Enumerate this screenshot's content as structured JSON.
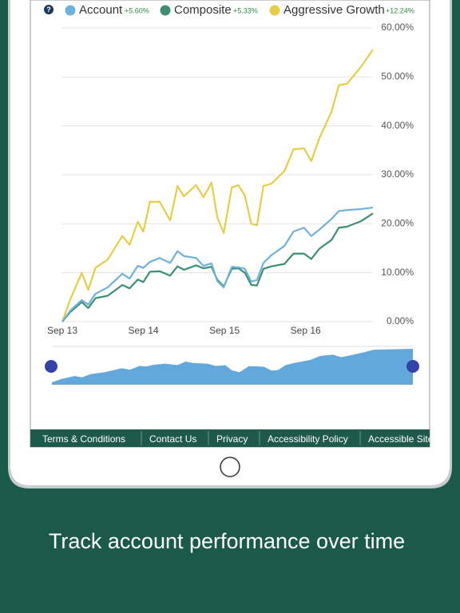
{
  "chart_data": {
    "type": "line",
    "x": [
      0,
      0.1,
      0.24,
      0.32,
      0.41,
      0.56,
      0.74,
      0.83,
      0.93,
      1.0,
      1.08,
      1.2,
      1.33,
      1.42,
      1.5,
      1.65,
      1.74,
      1.84,
      1.91,
      1.99,
      2.09,
      2.17,
      2.25,
      2.33,
      2.4,
      2.48,
      2.58,
      2.74,
      2.85,
      2.98,
      3.07,
      3.17,
      3.32,
      3.41,
      3.51,
      3.68,
      3.83
    ],
    "xlim": [
      0,
      3.83
    ],
    "xticks": [
      {
        "value": 0,
        "label": "Sep 13"
      },
      {
        "value": 1,
        "label": "Sep 14"
      },
      {
        "value": 2,
        "label": "Sep 15"
      },
      {
        "value": 3,
        "label": "Sep 16"
      }
    ],
    "ylim": [
      0,
      60
    ],
    "yticks": [
      {
        "value": 0,
        "label": "0.00%"
      },
      {
        "value": 10,
        "label": "10.00%"
      },
      {
        "value": 20,
        "label": "20.00%"
      },
      {
        "value": 30,
        "label": "30.00%"
      },
      {
        "value": 40,
        "label": "40.00%"
      },
      {
        "value": 50,
        "label": "50.00%"
      },
      {
        "value": 60,
        "label": "60.00%"
      }
    ],
    "grid": true,
    "series": [
      {
        "name": "Account",
        "change": "+5.60%",
        "color": "#6fb1dc",
        "values": [
          0,
          2.3,
          4.4,
          3.5,
          5.7,
          7,
          9.8,
          8.8,
          11.4,
          11,
          12.2,
          13,
          12,
          14.4,
          13.4,
          13,
          11.4,
          11.9,
          8.3,
          7,
          11.2,
          11.1,
          10.8,
          8.2,
          8.5,
          12,
          13.6,
          15.5,
          18.4,
          19.2,
          17.5,
          18.8,
          21,
          22.6,
          22.8,
          23,
          23.3
        ]
      },
      {
        "name": "Composite",
        "change": "+5.33%",
        "color": "#3d8f73",
        "values": [
          0,
          2,
          4,
          2.8,
          4.8,
          5.3,
          7.5,
          6.8,
          8.6,
          8.1,
          10.2,
          10.3,
          9.4,
          11.3,
          10.6,
          11.5,
          10.9,
          11.2,
          8.6,
          7.2,
          10.8,
          10.9,
          10,
          7.5,
          7.4,
          10.8,
          11.3,
          11.8,
          13.9,
          13.9,
          12.8,
          14.9,
          16.7,
          19.2,
          19.4,
          20.5,
          22.1
        ]
      },
      {
        "name": "Aggressive Growth",
        "change": "+12.24%",
        "color": "#e6cd45",
        "values": [
          0,
          4.6,
          10,
          6.5,
          11,
          12.7,
          17.5,
          15.7,
          20.4,
          18.4,
          24.5,
          24.5,
          20.7,
          27.7,
          25.6,
          27.9,
          25.4,
          28.4,
          21.4,
          18.1,
          27.4,
          27.9,
          25.8,
          20,
          19.7,
          27.7,
          28.2,
          30.8,
          35.2,
          35.4,
          32.8,
          37.5,
          42.9,
          48.3,
          48.6,
          52,
          55.6
        ]
      }
    ]
  },
  "footer": {
    "links": [
      "Terms & Conditions",
      "Contact Us",
      "Privacy",
      "Accessibility Policy",
      "Accessible Site"
    ]
  },
  "caption": "Track account performance over time"
}
